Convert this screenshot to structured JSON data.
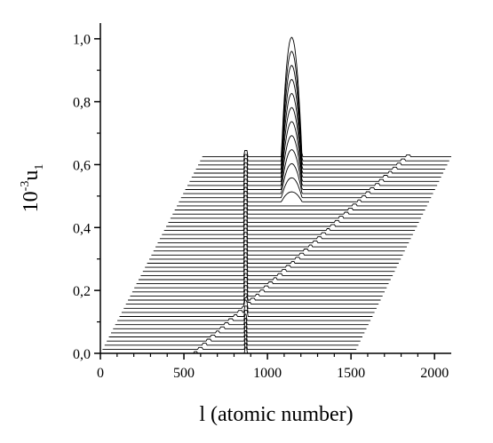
{
  "chart_data": {
    "type": "line",
    "style": "waterfall / stacked offset profiles",
    "title": "",
    "xlabel": "l (atomic number)",
    "ylabel_base": "10",
    "ylabel_exp": "-3",
    "ylabel_var": "u",
    "ylabel_sub": "1",
    "xlim": [
      0,
      2100
    ],
    "ylim": [
      0,
      1.05
    ],
    "x_ticks": [
      0,
      500,
      1000,
      1500,
      2000
    ],
    "x_tick_labels": [
      "0",
      "500",
      "1000",
      "1500",
      "2000"
    ],
    "y_ticks": [
      0.0,
      0.2,
      0.4,
      0.6,
      0.8,
      1.0
    ],
    "y_tick_labels": [
      "0,0",
      "0,2",
      "0,4",
      "0,6",
      "0,8",
      "1,0"
    ],
    "grid": false,
    "legend": "none",
    "traces": {
      "count": 49,
      "first_baseline_y": 0.0,
      "last_baseline_y": 0.625,
      "first_x_range": [
        0,
        1520
      ],
      "last_x_range": [
        610,
        2100
      ],
      "front_bump_peak_x": 1145,
      "front_bump_half_width": 62,
      "front_bump_peak_y": 1.005,
      "back_feature_x": 870,
      "back_feature_height": 0.02,
      "shift_feature_start_x": 570,
      "shift_feature_end_x": 1840
    },
    "colors": {
      "line": "#000000",
      "background": "#ffffff"
    }
  }
}
